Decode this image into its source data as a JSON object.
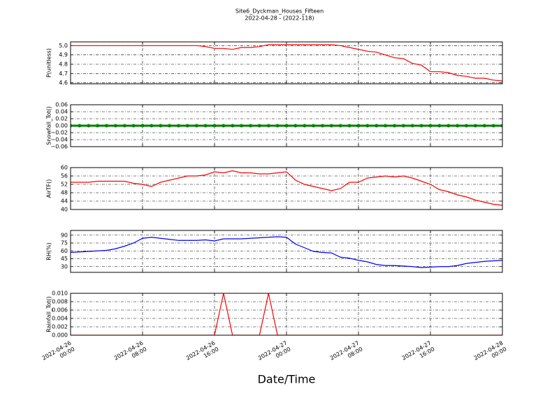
{
  "title": "Site6_Dyckman_Houses_Fifteen",
  "subtitle": "2022-04-28 - (2022-118)",
  "chart_data": [
    {
      "type": "line",
      "ylabel": "P(unitless)",
      "color": "#ff0000",
      "grid": true,
      "show_xtick_labels": false,
      "xlim": [
        "2022-04-26 00:00",
        "2022-04-28 00:00"
      ],
      "xticks": [
        "2022-04-26 00:00",
        "2022-04-26 08:00",
        "2022-04-26 16:00",
        "2022-04-27 00:00",
        "2022-04-27 08:00",
        "2022-04-27 16:00",
        "2022-04-28 00:00"
      ],
      "ylim": [
        4.59,
        5.04
      ],
      "yticks": [
        4.6,
        4.7,
        4.8,
        4.9,
        {
          "value": 5,
          "label": "5.0"
        }
      ],
      "x": [
        "2022-04-26 00:00",
        "2022-04-26 01:00",
        "2022-04-26 02:00",
        "2022-04-26 03:00",
        "2022-04-26 04:00",
        "2022-04-26 05:00",
        "2022-04-26 06:00",
        "2022-04-26 07:00",
        "2022-04-26 08:00",
        "2022-04-26 09:00",
        "2022-04-26 10:00",
        "2022-04-26 11:00",
        "2022-04-26 12:00",
        "2022-04-26 13:00",
        "2022-04-26 14:00",
        "2022-04-26 15:00",
        "2022-04-26 16:00",
        "2022-04-26 17:00",
        "2022-04-26 18:00",
        "2022-04-26 19:00",
        "2022-04-26 20:00",
        "2022-04-26 21:00",
        "2022-04-26 22:00",
        "2022-04-26 23:00",
        "2022-04-27 00:00",
        "2022-04-27 01:00",
        "2022-04-27 02:00",
        "2022-04-27 03:00",
        "2022-04-27 04:00",
        "2022-04-27 05:00",
        "2022-04-27 06:00",
        "2022-04-27 07:00",
        "2022-04-27 08:00",
        "2022-04-27 09:00",
        "2022-04-27 10:00",
        "2022-04-27 11:00",
        "2022-04-27 12:00",
        "2022-04-27 13:00",
        "2022-04-27 14:00",
        "2022-04-27 15:00",
        "2022-04-27 16:00",
        "2022-04-27 17:00",
        "2022-04-27 18:00",
        "2022-04-27 19:00",
        "2022-04-27 20:00",
        "2022-04-27 21:00",
        "2022-04-27 22:00",
        "2022-04-27 23:00",
        "2022-04-28 00:00"
      ],
      "values": [
        5.0,
        5.0,
        5.0,
        5.0,
        5.0,
        5.0,
        5.0,
        5.0,
        5.0,
        5.0,
        5.0,
        5.0,
        5.0,
        5.0,
        5.0,
        4.99,
        4.97,
        4.97,
        4.96,
        4.98,
        4.98,
        4.99,
        5.01,
        5.01,
        5.01,
        5.01,
        5.01,
        5.01,
        5.01,
        5.01,
        5.0,
        4.98,
        4.96,
        4.94,
        4.93,
        4.9,
        4.87,
        4.86,
        4.81,
        4.79,
        4.72,
        4.72,
        4.71,
        4.68,
        4.67,
        4.65,
        4.65,
        4.63,
        4.62
      ]
    },
    {
      "type": "line",
      "ylabel": "Snowfall_Tot()",
      "color": "#008000",
      "markers": true,
      "grid": true,
      "show_xtick_labels": false,
      "xlim": [
        "2022-04-26 00:00",
        "2022-04-28 00:00"
      ],
      "xticks": [
        "2022-04-26 00:00",
        "2022-04-26 08:00",
        "2022-04-26 16:00",
        "2022-04-27 00:00",
        "2022-04-27 08:00",
        "2022-04-27 16:00",
        "2022-04-28 00:00"
      ],
      "ylim": [
        -0.06,
        0.06
      ],
      "yticks": [
        {
          "value": -0.06,
          "label": "−0.06"
        },
        {
          "value": -0.04,
          "label": "−0.04"
        },
        {
          "value": -0.02,
          "label": "−0.02"
        },
        {
          "value": 0,
          "label": "0.00"
        },
        0.02,
        0.04,
        0.06
      ],
      "x": [
        "2022-04-26 00:00",
        "2022-04-26 01:00",
        "2022-04-26 02:00",
        "2022-04-26 03:00",
        "2022-04-26 04:00",
        "2022-04-26 05:00",
        "2022-04-26 06:00",
        "2022-04-26 07:00",
        "2022-04-26 08:00",
        "2022-04-26 09:00",
        "2022-04-26 10:00",
        "2022-04-26 11:00",
        "2022-04-26 12:00",
        "2022-04-26 13:00",
        "2022-04-26 14:00",
        "2022-04-26 15:00",
        "2022-04-26 16:00",
        "2022-04-26 17:00",
        "2022-04-26 18:00",
        "2022-04-26 19:00",
        "2022-04-26 20:00",
        "2022-04-26 21:00",
        "2022-04-26 22:00",
        "2022-04-26 23:00",
        "2022-04-27 00:00",
        "2022-04-27 01:00",
        "2022-04-27 02:00",
        "2022-04-27 03:00",
        "2022-04-27 04:00",
        "2022-04-27 05:00",
        "2022-04-27 06:00",
        "2022-04-27 07:00",
        "2022-04-27 08:00",
        "2022-04-27 09:00",
        "2022-04-27 10:00",
        "2022-04-27 11:00",
        "2022-04-27 12:00",
        "2022-04-27 13:00",
        "2022-04-27 14:00",
        "2022-04-27 15:00",
        "2022-04-27 16:00",
        "2022-04-27 17:00",
        "2022-04-27 18:00",
        "2022-04-27 19:00",
        "2022-04-27 20:00",
        "2022-04-27 21:00",
        "2022-04-27 22:00",
        "2022-04-27 23:00",
        "2022-04-28 00:00"
      ],
      "values": [
        0,
        0,
        0,
        0,
        0,
        0,
        0,
        0,
        0,
        0,
        0,
        0,
        0,
        0,
        0,
        0,
        0,
        0,
        0,
        0,
        0,
        0,
        0,
        0,
        0,
        0,
        0,
        0,
        0,
        0,
        0,
        0,
        0,
        0,
        0,
        0,
        0,
        0,
        0,
        0,
        0,
        0,
        0,
        0,
        0,
        0,
        0,
        0,
        0
      ]
    },
    {
      "type": "line",
      "ylabel": "AirTF()",
      "color": "#ff0000",
      "grid": true,
      "show_xtick_labels": false,
      "xlim": [
        "2022-04-26 00:00",
        "2022-04-28 00:00"
      ],
      "xticks": [
        "2022-04-26 00:00",
        "2022-04-26 08:00",
        "2022-04-26 16:00",
        "2022-04-27 00:00",
        "2022-04-27 08:00",
        "2022-04-27 16:00",
        "2022-04-28 00:00"
      ],
      "ylim": [
        40,
        60
      ],
      "yticks": [
        40,
        44,
        48,
        52,
        56,
        60
      ],
      "x": [
        "2022-04-26 00:00",
        "2022-04-26 01:00",
        "2022-04-26 02:00",
        "2022-04-26 03:00",
        "2022-04-26 04:00",
        "2022-04-26 05:00",
        "2022-04-26 06:00",
        "2022-04-26 07:00",
        "2022-04-26 08:00",
        "2022-04-26 09:00",
        "2022-04-26 10:00",
        "2022-04-26 11:00",
        "2022-04-26 12:00",
        "2022-04-26 13:00",
        "2022-04-26 14:00",
        "2022-04-26 15:00",
        "2022-04-26 16:00",
        "2022-04-26 17:00",
        "2022-04-26 18:00",
        "2022-04-26 19:00",
        "2022-04-26 20:00",
        "2022-04-26 21:00",
        "2022-04-26 22:00",
        "2022-04-26 23:00",
        "2022-04-27 00:00",
        "2022-04-27 01:00",
        "2022-04-27 02:00",
        "2022-04-27 03:00",
        "2022-04-27 04:00",
        "2022-04-27 05:00",
        "2022-04-27 06:00",
        "2022-04-27 07:00",
        "2022-04-27 08:00",
        "2022-04-27 09:00",
        "2022-04-27 10:00",
        "2022-04-27 11:00",
        "2022-04-27 12:00",
        "2022-04-27 13:00",
        "2022-04-27 14:00",
        "2022-04-27 15:00",
        "2022-04-27 16:00",
        "2022-04-27 17:00",
        "2022-04-27 18:00",
        "2022-04-27 19:00",
        "2022-04-27 20:00",
        "2022-04-27 21:00",
        "2022-04-27 22:00",
        "2022-04-27 23:00",
        "2022-04-28 00:00"
      ],
      "values": [
        53,
        53,
        53,
        53.5,
        53.5,
        53.5,
        53.5,
        52.5,
        52,
        51,
        53,
        54,
        55,
        56,
        56,
        56.5,
        58,
        57.5,
        58.5,
        57.5,
        57.5,
        57,
        57,
        57.5,
        58,
        54,
        52,
        51,
        50,
        49,
        50,
        53,
        53,
        55,
        55.5,
        56,
        55.5,
        56,
        55,
        53.5,
        52,
        49.5,
        48.5,
        47,
        46,
        44.5,
        43.5,
        42.5,
        42
      ]
    },
    {
      "type": "line",
      "ylabel": "RH(%)",
      "color": "#0000ff",
      "grid": true,
      "show_xtick_labels": false,
      "xlim": [
        "2022-04-26 00:00",
        "2022-04-28 00:00"
      ],
      "xticks": [
        "2022-04-26 00:00",
        "2022-04-26 08:00",
        "2022-04-26 16:00",
        "2022-04-27 00:00",
        "2022-04-27 08:00",
        "2022-04-27 16:00",
        "2022-04-28 00:00"
      ],
      "ylim": [
        19,
        99
      ],
      "yticks": [
        30,
        45,
        60,
        75,
        90
      ],
      "x": [
        "2022-04-26 00:00",
        "2022-04-26 01:00",
        "2022-04-26 02:00",
        "2022-04-26 03:00",
        "2022-04-26 04:00",
        "2022-04-26 05:00",
        "2022-04-26 06:00",
        "2022-04-26 07:00",
        "2022-04-26 08:00",
        "2022-04-26 09:00",
        "2022-04-26 10:00",
        "2022-04-26 11:00",
        "2022-04-26 12:00",
        "2022-04-26 13:00",
        "2022-04-26 14:00",
        "2022-04-26 15:00",
        "2022-04-26 16:00",
        "2022-04-26 17:00",
        "2022-04-26 18:00",
        "2022-04-26 19:00",
        "2022-04-26 20:00",
        "2022-04-26 21:00",
        "2022-04-26 22:00",
        "2022-04-26 23:00",
        "2022-04-27 00:00",
        "2022-04-27 01:00",
        "2022-04-27 02:00",
        "2022-04-27 03:00",
        "2022-04-27 04:00",
        "2022-04-27 05:00",
        "2022-04-27 06:00",
        "2022-04-27 07:00",
        "2022-04-27 08:00",
        "2022-04-27 09:00",
        "2022-04-27 10:00",
        "2022-04-27 11:00",
        "2022-04-27 12:00",
        "2022-04-27 13:00",
        "2022-04-27 14:00",
        "2022-04-27 15:00",
        "2022-04-27 16:00",
        "2022-04-27 17:00",
        "2022-04-27 18:00",
        "2022-04-27 19:00",
        "2022-04-27 20:00",
        "2022-04-27 21:00",
        "2022-04-27 22:00",
        "2022-04-27 23:00",
        "2022-04-28 00:00"
      ],
      "values": [
        57,
        58,
        59,
        60,
        61,
        64,
        69,
        75,
        84,
        86,
        84,
        82,
        80,
        80,
        80,
        81,
        79,
        83,
        83,
        83,
        84,
        85,
        86,
        87,
        86,
        73,
        66,
        59,
        57,
        56,
        48,
        46,
        42,
        39,
        34,
        32,
        32,
        31,
        30,
        28,
        29,
        30,
        30,
        32,
        36,
        38,
        40,
        41,
        42
      ]
    },
    {
      "type": "line",
      "ylabel": "Rainfall_Tot()",
      "xlabel": "Date/Time",
      "color": "#ff0000",
      "grid": true,
      "show_xtick_labels": true,
      "xlim": [
        "2022-04-26 00:00",
        "2022-04-28 00:00"
      ],
      "xticks": [
        "2022-04-26 00:00",
        "2022-04-26 08:00",
        "2022-04-26 16:00",
        "2022-04-27 00:00",
        "2022-04-27 08:00",
        "2022-04-27 16:00",
        "2022-04-28 00:00"
      ],
      "ylim": [
        0,
        0.01
      ],
      "yticks": [
        {
          "value": 0,
          "label": "0.000"
        },
        0.002,
        0.004,
        0.006,
        0.008,
        {
          "value": 0.01,
          "label": "0.010"
        }
      ],
      "x": [
        "2022-04-26 00:00",
        "2022-04-26 01:00",
        "2022-04-26 02:00",
        "2022-04-26 03:00",
        "2022-04-26 04:00",
        "2022-04-26 05:00",
        "2022-04-26 06:00",
        "2022-04-26 07:00",
        "2022-04-26 08:00",
        "2022-04-26 09:00",
        "2022-04-26 10:00",
        "2022-04-26 11:00",
        "2022-04-26 12:00",
        "2022-04-26 13:00",
        "2022-04-26 14:00",
        "2022-04-26 15:00",
        "2022-04-26 16:00",
        "2022-04-26 17:00",
        "2022-04-26 18:00",
        "2022-04-26 19:00",
        "2022-04-26 20:00",
        "2022-04-26 21:00",
        "2022-04-26 22:00",
        "2022-04-26 23:00",
        "2022-04-27 00:00",
        "2022-04-27 01:00",
        "2022-04-27 02:00",
        "2022-04-27 03:00",
        "2022-04-27 04:00",
        "2022-04-27 05:00",
        "2022-04-27 06:00",
        "2022-04-27 07:00",
        "2022-04-27 08:00",
        "2022-04-27 09:00",
        "2022-04-27 10:00",
        "2022-04-27 11:00",
        "2022-04-27 12:00",
        "2022-04-27 13:00",
        "2022-04-27 14:00",
        "2022-04-27 15:00",
        "2022-04-27 16:00",
        "2022-04-27 17:00",
        "2022-04-27 18:00",
        "2022-04-27 19:00",
        "2022-04-27 20:00",
        "2022-04-27 21:00",
        "2022-04-27 22:00",
        "2022-04-27 23:00",
        "2022-04-28 00:00"
      ],
      "values": [
        0,
        0,
        0,
        0,
        0,
        0,
        0,
        0,
        0,
        0,
        0,
        0,
        0,
        0,
        0,
        0,
        0,
        0.01,
        0,
        0,
        0,
        0,
        0.01,
        0,
        0,
        0,
        0,
        0,
        0,
        0,
        0,
        0,
        0,
        0,
        0,
        0,
        0,
        0,
        0,
        0,
        0,
        0,
        0,
        0,
        0,
        0,
        0,
        0,
        0
      ]
    }
  ]
}
